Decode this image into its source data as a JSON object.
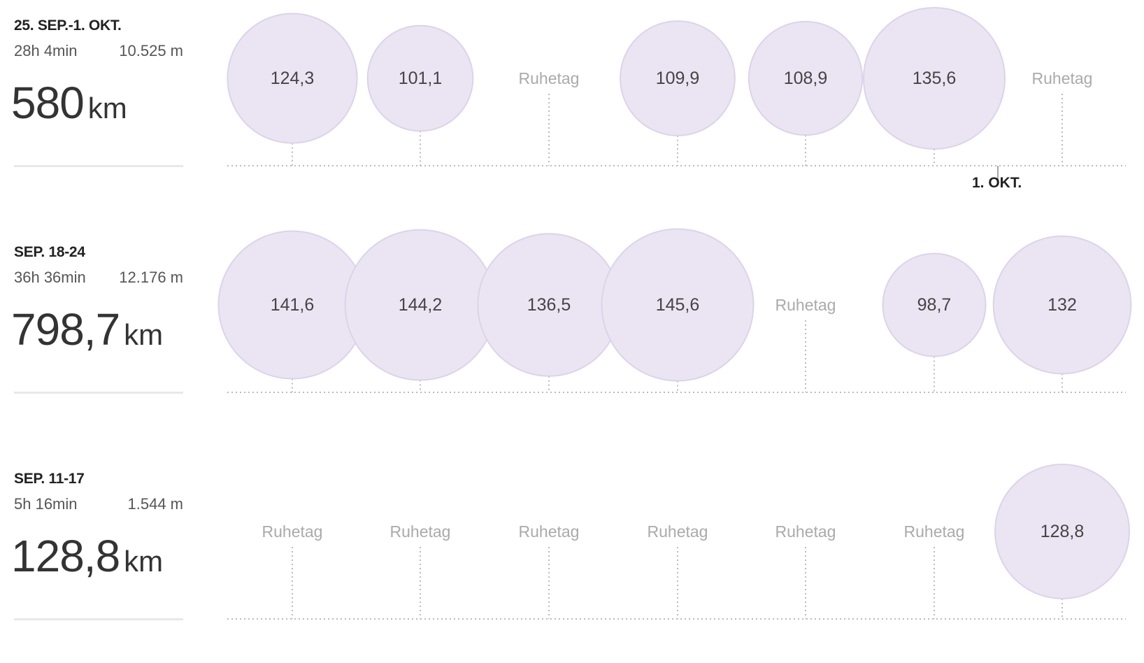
{
  "chart_data": {
    "type": "bubble",
    "value_unit": "km",
    "weeks": [
      {
        "label": "25. SEP.-1. OKT.",
        "duration": "28h 4min",
        "elevation": "10.525 m",
        "distance_value": "580",
        "distance_unit": "km",
        "marker": "1. OKT.",
        "days": [
          {
            "value": 124.3,
            "label": "124,3"
          },
          {
            "value": 101.1,
            "label": "101,1"
          },
          {
            "value": null,
            "label": "Ruhetag"
          },
          {
            "value": 109.9,
            "label": "109,9"
          },
          {
            "value": 108.9,
            "label": "108,9"
          },
          {
            "value": 135.6,
            "label": "135,6"
          },
          {
            "value": null,
            "label": "Ruhetag"
          }
        ]
      },
      {
        "label": "SEP. 18-24",
        "duration": "36h 36min",
        "elevation": "12.176 m",
        "distance_value": "798,7",
        "distance_unit": "km",
        "days": [
          {
            "value": 141.6,
            "label": "141,6"
          },
          {
            "value": 144.2,
            "label": "144,2"
          },
          {
            "value": 136.5,
            "label": "136,5"
          },
          {
            "value": 145.6,
            "label": "145,6"
          },
          {
            "value": null,
            "label": "Ruhetag"
          },
          {
            "value": 98.7,
            "label": "98,7"
          },
          {
            "value": 132,
            "label": "132"
          }
        ]
      },
      {
        "label": "SEP. 11-17",
        "duration": "5h 16min",
        "elevation": "1.544 m",
        "distance_value": "128,8",
        "distance_unit": "km",
        "days": [
          {
            "value": null,
            "label": "Ruhetag"
          },
          {
            "value": null,
            "label": "Ruhetag"
          },
          {
            "value": null,
            "label": "Ruhetag"
          },
          {
            "value": null,
            "label": "Ruhetag"
          },
          {
            "value": null,
            "label": "Ruhetag"
          },
          {
            "value": null,
            "label": "Ruhetag"
          },
          {
            "value": 128.8,
            "label": "128,8"
          }
        ]
      }
    ],
    "colors": {
      "bubble_fill": "#ebe5f3",
      "bubble_stroke": "#dcd3e9",
      "rest_text": "#aaaaaa",
      "dotted_line": "#bbbbbb"
    }
  }
}
